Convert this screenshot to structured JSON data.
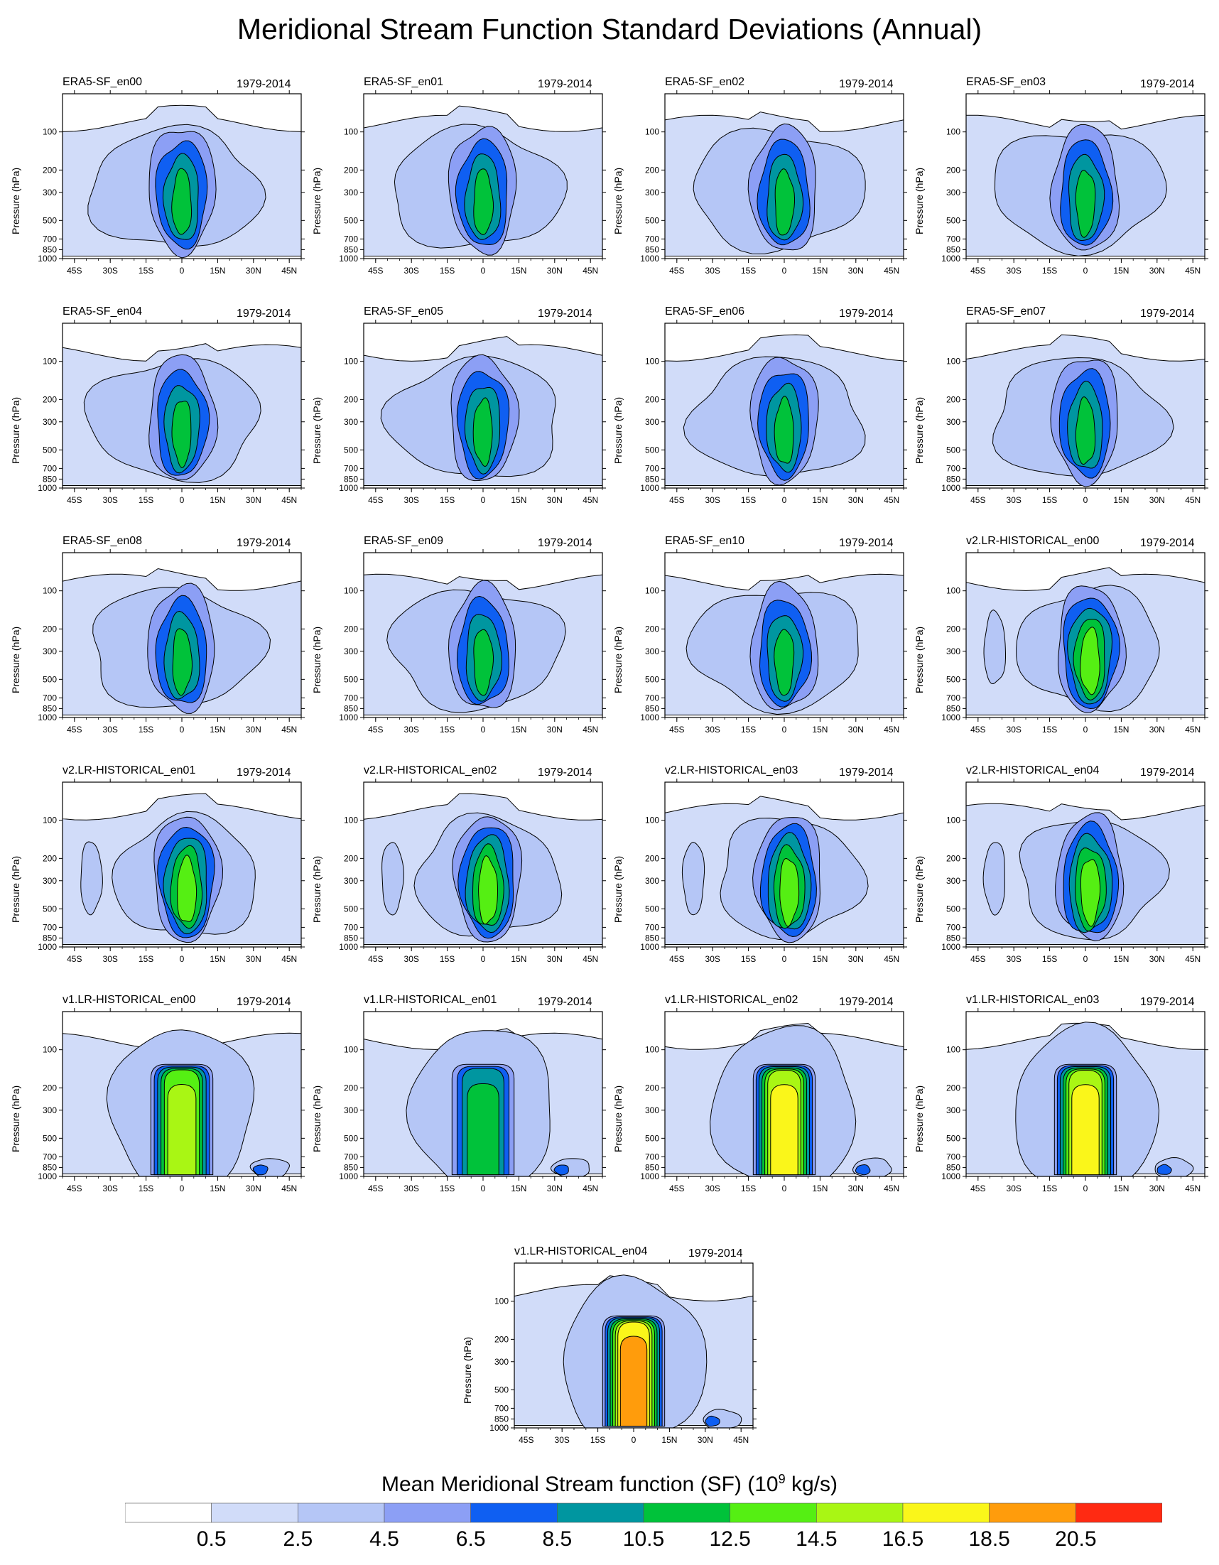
{
  "title": "Meridional Stream Function Standard Deviations (Annual)",
  "chart_data": {
    "type": "contour",
    "ylabel": "Pressure (hPa)",
    "y_ticks": [
      "100",
      "200",
      "300",
      "500",
      "700",
      "850",
      "1000"
    ],
    "x_ticks": [
      "45S",
      "30S",
      "15S",
      "0",
      "15N",
      "30N",
      "45N"
    ],
    "xlim": [
      -50,
      50
    ],
    "ylim": [
      1000,
      50
    ],
    "years": "1979-2014",
    "colorbar": {
      "label_main": "Mean Meridional Stream function (SF) (10",
      "label_exp": "9",
      "label_tail": " kg/s)",
      "levels": [
        "0.5",
        "2.5",
        "4.5",
        "6.5",
        "8.5",
        "10.5",
        "12.5",
        "14.5",
        "16.5",
        "18.5",
        "20.5"
      ],
      "colors": [
        "#ffffff",
        "#d1dcf9",
        "#b5c6f6",
        "#8c9ff5",
        "#0f5ff2",
        "#0096a0",
        "#00c23a",
        "#55ef13",
        "#a9f614",
        "#faf61a",
        "#ff9c0c",
        "#ff2a12"
      ]
    },
    "panels": [
      {
        "name": "ERA5-SF_en00",
        "peak": 11.8,
        "style": "era5"
      },
      {
        "name": "ERA5-SF_en01",
        "peak": 11.6,
        "style": "era5"
      },
      {
        "name": "ERA5-SF_en02",
        "peak": 11.6,
        "style": "era5"
      },
      {
        "name": "ERA5-SF_en03",
        "peak": 11.6,
        "style": "era5"
      },
      {
        "name": "ERA5-SF_en04",
        "peak": 11.6,
        "style": "era5"
      },
      {
        "name": "ERA5-SF_en05",
        "peak": 11.6,
        "style": "era5"
      },
      {
        "name": "ERA5-SF_en06",
        "peak": 11.6,
        "style": "era5"
      },
      {
        "name": "ERA5-SF_en07",
        "peak": 11.6,
        "style": "era5"
      },
      {
        "name": "ERA5-SF_en08",
        "peak": 11.6,
        "style": "era5"
      },
      {
        "name": "ERA5-SF_en09",
        "peak": 11.4,
        "style": "era5"
      },
      {
        "name": "ERA5-SF_en10",
        "peak": 11.6,
        "style": "era5"
      },
      {
        "name": "v2.LR-HISTORICAL_en00",
        "peak": 13.2,
        "style": "v2"
      },
      {
        "name": "v2.LR-HISTORICAL_en01",
        "peak": 13.0,
        "style": "v2"
      },
      {
        "name": "v2.LR-HISTORICAL_en02",
        "peak": 13.4,
        "style": "v2"
      },
      {
        "name": "v2.LR-HISTORICAL_en03",
        "peak": 12.8,
        "style": "v2"
      },
      {
        "name": "v2.LR-HISTORICAL_en04",
        "peak": 13.6,
        "style": "v2"
      },
      {
        "name": "v1.LR-HISTORICAL_en00",
        "peak": 16.0,
        "style": "v1"
      },
      {
        "name": "v1.LR-HISTORICAL_en01",
        "peak": 11.8,
        "style": "v1"
      },
      {
        "name": "v1.LR-HISTORICAL_en02",
        "peak": 17.0,
        "style": "v1"
      },
      {
        "name": "v1.LR-HISTORICAL_en03",
        "peak": 18.2,
        "style": "v1"
      },
      {
        "name": "v1.LR-HISTORICAL_en04",
        "peak": 18.8,
        "style": "v1"
      }
    ]
  }
}
